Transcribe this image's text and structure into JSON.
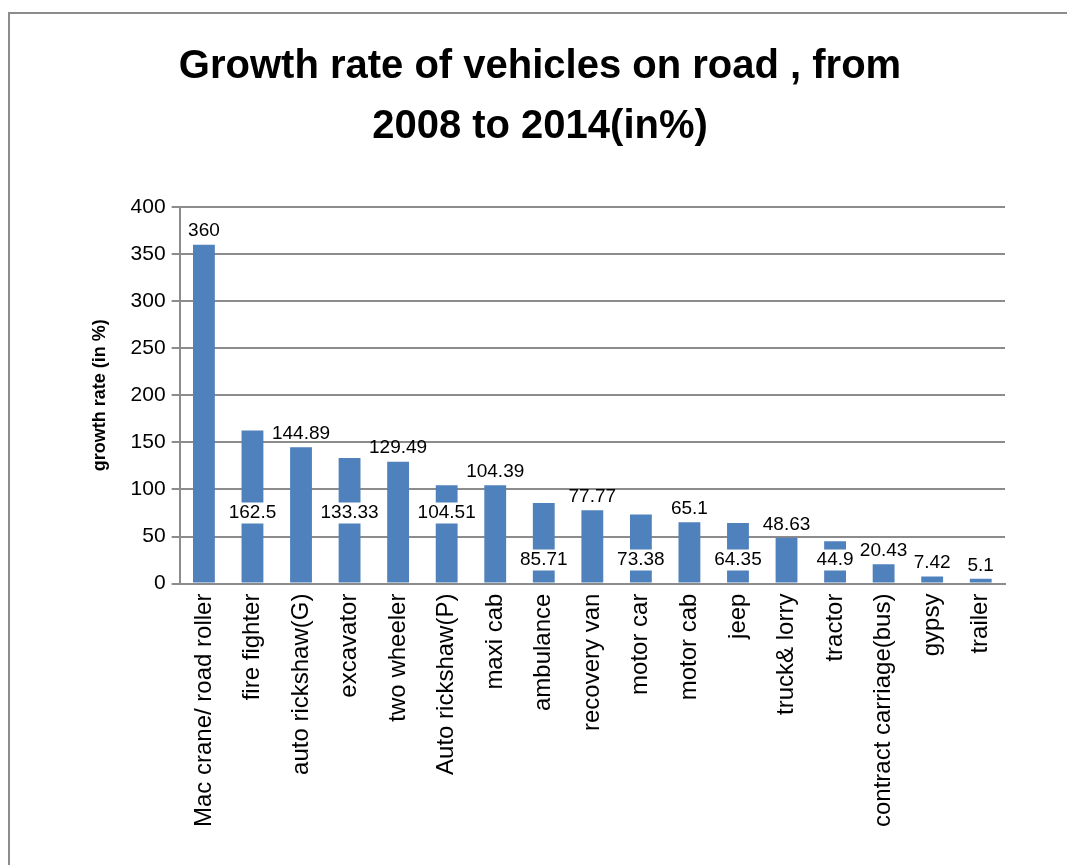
{
  "chart_data": {
    "type": "bar",
    "title": "Growth rate of vehicles on road , from 2008 to 2014(in%)",
    "ylabel": "growth rate (in %)",
    "categories": [
      "Mac crane/ road roller",
      "fire fighter",
      "auto rickshaw(G)",
      "excavator",
      "two wheeler",
      "Auto rickshaw(P)",
      "maxi cab",
      "ambulance",
      "recovery van",
      "motor car",
      "motor cab",
      "jeep",
      "truck& lorry",
      "tractor",
      "contract carriage(bus)",
      "gypsy",
      "trailer"
    ],
    "values": [
      360,
      162.5,
      144.89,
      133.33,
      129.49,
      104.51,
      104.39,
      85.71,
      77.77,
      73.38,
      65.1,
      64.35,
      48.63,
      44.9,
      20.43,
      7.42,
      5.1
    ],
    "color": "#4f81bd",
    "ylim": [
      0,
      400
    ],
    "yticks": [
      0,
      50,
      100,
      150,
      200,
      250,
      300,
      350,
      400
    ],
    "grid": "y",
    "data_labels": true
  }
}
